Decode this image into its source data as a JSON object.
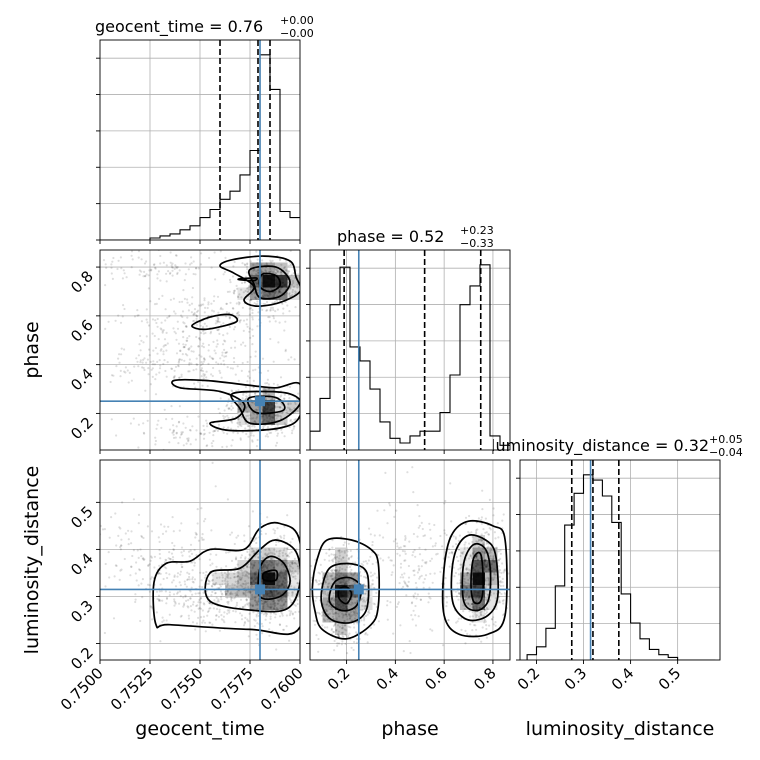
{
  "chart_data": {
    "type": "corner",
    "parameters": [
      "geocent_time",
      "phase",
      "luminosity_distance"
    ],
    "truth": {
      "geocent_time": 0.758,
      "phase": 0.25,
      "luminosity_distance": 0.315
    },
    "truth_color": "#4682b4",
    "ranges": {
      "geocent_time": [
        0.75,
        0.76
      ],
      "phase": [
        0.05,
        0.87
      ],
      "luminosity_distance": [
        0.165,
        0.59
      ]
    },
    "titles": {
      "geocent_time": {
        "label": "geocent_time = 0.76",
        "plus": "+0.00",
        "minus": "−0.00"
      },
      "phase": {
        "label": "phase = 0.52",
        "plus": "+0.23",
        "minus": "−0.33"
      },
      "luminosity_distance": {
        "label": "luminosity_distance = 0.32",
        "plus": "+0.05",
        "minus": "−0.04"
      }
    },
    "quantiles": {
      "geocent_time": [
        0.756,
        0.7579,
        0.7585
      ],
      "phase": [
        0.19,
        0.52,
        0.75
      ],
      "luminosity_distance": [
        0.275,
        0.32,
        0.375
      ]
    },
    "ticks": {
      "geocent_time": {
        "values": [
          0.75,
          0.7525,
          0.755,
          0.7575,
          0.76
        ],
        "labels": [
          "0.7500",
          "0.7525",
          "0.7550",
          "0.7575",
          "0.7600"
        ]
      },
      "phase": {
        "values": [
          0.2,
          0.4,
          0.6,
          0.8
        ],
        "labels": [
          "0.2",
          "0.4",
          "0.6",
          "0.8"
        ]
      },
      "luminosity_distance": {
        "values": [
          0.2,
          0.3,
          0.4,
          0.5
        ],
        "labels": [
          "0.2",
          "0.3",
          "0.4",
          "0.5"
        ]
      }
    },
    "histograms": {
      "geocent_time": {
        "edges": [
          0.75,
          0.7505,
          0.751,
          0.7515,
          0.752,
          0.7525,
          0.753,
          0.7535,
          0.754,
          0.7545,
          0.755,
          0.7555,
          0.756,
          0.7565,
          0.757,
          0.7575,
          0.758,
          0.7585,
          0.759,
          0.7595,
          0.76
        ],
        "counts": [
          0,
          0,
          0,
          0,
          0,
          1,
          2,
          3,
          5,
          7,
          11,
          15,
          20,
          24,
          32,
          44,
          91,
          74,
          14,
          11
        ]
      },
      "phase": {
        "edges": [
          0.05,
          0.091,
          0.132,
          0.173,
          0.214,
          0.255,
          0.296,
          0.337,
          0.378,
          0.419,
          0.46,
          0.501,
          0.542,
          0.583,
          0.624,
          0.665,
          0.706,
          0.747,
          0.788,
          0.829,
          0.87
        ],
        "counts": [
          8,
          22,
          62,
          78,
          44,
          38,
          26,
          12,
          5,
          3,
          6,
          8,
          8,
          16,
          32,
          62,
          70,
          79,
          6,
          2
        ]
      },
      "luminosity_distance": {
        "edges": [
          0.18,
          0.2,
          0.22,
          0.24,
          0.26,
          0.28,
          0.3,
          0.32,
          0.34,
          0.36,
          0.38,
          0.4,
          0.42,
          0.44,
          0.46,
          0.48,
          0.5,
          0.52,
          0.54,
          0.56,
          0.58
        ],
        "counts": [
          2,
          5,
          12,
          28,
          51,
          63,
          70,
          68,
          62,
          52,
          25,
          14,
          8,
          4,
          2,
          1,
          0,
          0,
          0,
          0
        ]
      }
    },
    "blobs_2d": {
      "phase_vs_geocent_time": [
        {
          "x": 0.7585,
          "y": 0.735,
          "sx": 0.0008,
          "sy": 0.05,
          "n": 450
        },
        {
          "x": 0.7582,
          "y": 0.22,
          "sx": 0.0009,
          "sy": 0.05,
          "n": 400
        },
        {
          "x": 0.7555,
          "y": 0.6,
          "sx": 0.0022,
          "sy": 0.045,
          "n": 200
        },
        {
          "x": 0.7545,
          "y": 0.39,
          "sx": 0.0022,
          "sy": 0.05,
          "n": 200
        },
        {
          "x": 0.753,
          "y": 0.8,
          "sx": 0.002,
          "sy": 0.035,
          "n": 110
        },
        {
          "x": 0.7555,
          "y": 0.12,
          "sx": 0.002,
          "sy": 0.04,
          "n": 140
        },
        {
          "x": 0.7545,
          "y": 0.5,
          "sx": 0.0015,
          "sy": 0.05,
          "n": 90
        }
      ],
      "luminosity_distance_vs_geocent_time": [
        {
          "x": 0.7584,
          "y": 0.33,
          "sx": 0.0009,
          "sy": 0.045,
          "n": 750
        },
        {
          "x": 0.756,
          "y": 0.3,
          "sx": 0.0016,
          "sy": 0.035,
          "n": 300
        },
        {
          "x": 0.7535,
          "y": 0.37,
          "sx": 0.0022,
          "sy": 0.06,
          "n": 260
        }
      ],
      "luminosity_distance_vs_phase": [
        {
          "x": 0.19,
          "y": 0.305,
          "sx": 0.055,
          "sy": 0.05,
          "n": 650
        },
        {
          "x": 0.74,
          "y": 0.34,
          "sx": 0.055,
          "sy": 0.055,
          "n": 650
        },
        {
          "x": 0.45,
          "y": 0.36,
          "sx": 0.09,
          "sy": 0.08,
          "n": 180
        }
      ]
    },
    "contours_2d": {
      "phase_vs_geocent_time": [
        [
          [
            0.7566,
            0.83
          ],
          [
            0.7582,
            0.845
          ],
          [
            0.7595,
            0.825
          ],
          [
            0.7598,
            0.76
          ],
          [
            0.76,
            0.7
          ],
          [
            0.759,
            0.655
          ],
          [
            0.7578,
            0.64
          ],
          [
            0.7572,
            0.665
          ],
          [
            0.7577,
            0.72
          ],
          [
            0.7567,
            0.775
          ],
          [
            0.756,
            0.805
          ]
        ],
        [
          [
            0.7575,
            0.79
          ],
          [
            0.7588,
            0.8
          ],
          [
            0.7595,
            0.74
          ],
          [
            0.759,
            0.68
          ],
          [
            0.758,
            0.675
          ],
          [
            0.7577,
            0.73
          ]
        ],
        [
          [
            0.7581,
            0.77
          ],
          [
            0.7588,
            0.765
          ],
          [
            0.759,
            0.725
          ],
          [
            0.7585,
            0.7
          ],
          [
            0.758,
            0.72
          ]
        ],
        [
          [
            0.757,
            0.752
          ],
          [
            0.7578,
            0.755
          ],
          [
            0.7577,
            0.745
          ],
          [
            0.757,
            0.748
          ]
        ],
        [
          [
            0.7553,
            0.545
          ],
          [
            0.7568,
            0.575
          ],
          [
            0.7565,
            0.605
          ],
          [
            0.7555,
            0.595
          ],
          [
            0.7546,
            0.56
          ]
        ],
        [
          [
            0.7537,
            0.335
          ],
          [
            0.7553,
            0.335
          ],
          [
            0.7575,
            0.315
          ],
          [
            0.7588,
            0.305
          ],
          [
            0.76,
            0.32
          ],
          [
            0.76,
            0.19
          ],
          [
            0.759,
            0.14
          ],
          [
            0.7565,
            0.13
          ],
          [
            0.7555,
            0.16
          ],
          [
            0.7568,
            0.18
          ],
          [
            0.7572,
            0.24
          ],
          [
            0.756,
            0.29
          ],
          [
            0.754,
            0.305
          ]
        ],
        [
          [
            0.7566,
            0.28
          ],
          [
            0.7582,
            0.29
          ],
          [
            0.7595,
            0.28
          ],
          [
            0.76,
            0.24
          ],
          [
            0.759,
            0.17
          ],
          [
            0.7575,
            0.16
          ],
          [
            0.757,
            0.22
          ]
        ],
        [
          [
            0.7575,
            0.265
          ],
          [
            0.7588,
            0.265
          ],
          [
            0.7592,
            0.215
          ],
          [
            0.758,
            0.2
          ],
          [
            0.7575,
            0.225
          ]
        ]
      ],
      "luminosity_distance_vs_geocent_time": [
        [
          [
            0.7528,
            0.24
          ],
          [
            0.7535,
            0.24
          ],
          [
            0.7575,
            0.23
          ],
          [
            0.76,
            0.235
          ],
          [
            0.76,
            0.415
          ],
          [
            0.759,
            0.455
          ],
          [
            0.758,
            0.445
          ],
          [
            0.7572,
            0.4
          ],
          [
            0.7555,
            0.4
          ],
          [
            0.7545,
            0.375
          ],
          [
            0.7533,
            0.37
          ],
          [
            0.7527,
            0.33
          ]
        ],
        [
          [
            0.7555,
            0.29
          ],
          [
            0.7578,
            0.27
          ],
          [
            0.7594,
            0.275
          ],
          [
            0.76,
            0.33
          ],
          [
            0.7598,
            0.395
          ],
          [
            0.7588,
            0.42
          ],
          [
            0.758,
            0.4
          ],
          [
            0.757,
            0.36
          ],
          [
            0.7555,
            0.35
          ]
        ],
        [
          [
            0.758,
            0.3
          ],
          [
            0.759,
            0.3
          ],
          [
            0.7595,
            0.33
          ],
          [
            0.7592,
            0.37
          ],
          [
            0.7585,
            0.385
          ],
          [
            0.758,
            0.36
          ]
        ],
        [
          [
            0.7582,
            0.335
          ],
          [
            0.7588,
            0.335
          ],
          [
            0.7588,
            0.355
          ],
          [
            0.7582,
            0.35
          ]
        ]
      ],
      "luminosity_distance_vs_phase": [
        [
          [
            0.07,
            0.27
          ],
          [
            0.1,
            0.23
          ],
          [
            0.2,
            0.21
          ],
          [
            0.3,
            0.24
          ],
          [
            0.33,
            0.28
          ],
          [
            0.33,
            0.37
          ],
          [
            0.3,
            0.4
          ],
          [
            0.22,
            0.42
          ],
          [
            0.12,
            0.42
          ],
          [
            0.08,
            0.38
          ],
          [
            0.06,
            0.32
          ]
        ],
        [
          [
            0.1,
            0.28
          ],
          [
            0.14,
            0.25
          ],
          [
            0.22,
            0.245
          ],
          [
            0.28,
            0.27
          ],
          [
            0.29,
            0.33
          ],
          [
            0.27,
            0.36
          ],
          [
            0.2,
            0.37
          ],
          [
            0.13,
            0.36
          ],
          [
            0.1,
            0.32
          ]
        ],
        [
          [
            0.13,
            0.29
          ],
          [
            0.18,
            0.27
          ],
          [
            0.24,
            0.28
          ],
          [
            0.26,
            0.32
          ],
          [
            0.21,
            0.34
          ],
          [
            0.15,
            0.33
          ]
        ],
        [
          [
            0.17,
            0.295
          ],
          [
            0.2,
            0.285
          ],
          [
            0.22,
            0.305
          ],
          [
            0.2,
            0.32
          ],
          [
            0.17,
            0.315
          ]
        ],
        [
          [
            0.6,
            0.26
          ],
          [
            0.66,
            0.22
          ],
          [
            0.78,
            0.22
          ],
          [
            0.85,
            0.26
          ],
          [
            0.85,
            0.42
          ],
          [
            0.8,
            0.45
          ],
          [
            0.7,
            0.46
          ],
          [
            0.63,
            0.43
          ],
          [
            0.6,
            0.36
          ]
        ],
        [
          [
            0.64,
            0.28
          ],
          [
            0.7,
            0.25
          ],
          [
            0.78,
            0.26
          ],
          [
            0.82,
            0.3
          ],
          [
            0.81,
            0.39
          ],
          [
            0.77,
            0.42
          ],
          [
            0.7,
            0.43
          ],
          [
            0.65,
            0.4
          ],
          [
            0.63,
            0.34
          ]
        ],
        [
          [
            0.68,
            0.29
          ],
          [
            0.73,
            0.27
          ],
          [
            0.78,
            0.29
          ],
          [
            0.79,
            0.35
          ],
          [
            0.77,
            0.4
          ],
          [
            0.72,
            0.41
          ],
          [
            0.68,
            0.37
          ]
        ],
        [
          [
            0.72,
            0.29
          ],
          [
            0.75,
            0.29
          ],
          [
            0.76,
            0.33
          ],
          [
            0.75,
            0.39
          ],
          [
            0.72,
            0.38
          ],
          [
            0.71,
            0.33
          ]
        ]
      ]
    }
  }
}
